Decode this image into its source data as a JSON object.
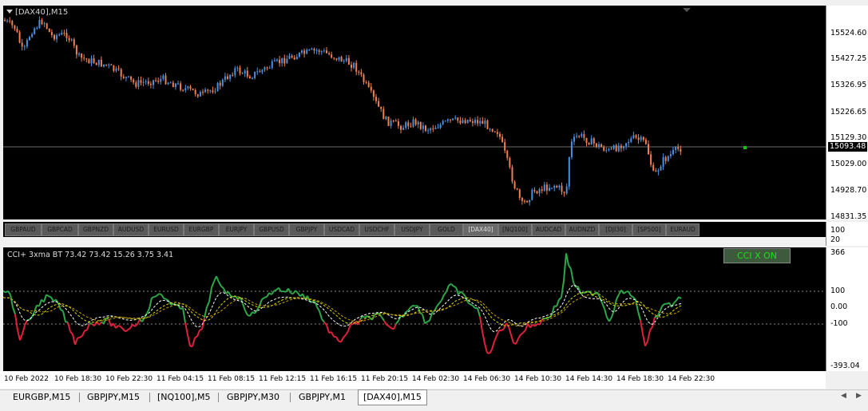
{
  "chart": {
    "title": "[DAX40],M15",
    "colors": {
      "up": "#4a90e2",
      "down": "#f08050",
      "cci": "#2ea64a",
      "cci_low": "#e0203a",
      "ma_fast": "#ffffff",
      "ma_slow": "#d8d800"
    }
  },
  "price_axis": {
    "labels": [
      "15524.60",
      "15427.25",
      "15326.95",
      "15226.65",
      "15129.30",
      "15029.00",
      "14928.70",
      "14831.35"
    ],
    "current": "15093.48"
  },
  "symbol_bar": {
    "buttons": [
      "GBPAUD",
      "GBPCAD",
      "GBPNZD",
      "AUDUSD",
      "EURUSD",
      "EURGBP",
      "EURJPY",
      "GBPUSD",
      "GBPJPY",
      "USDCAD",
      "USDCHF",
      "USDJPY",
      "GOLD",
      "[DAX40]",
      "[NQ100]",
      "AUDCAD",
      "AUDNZD",
      "[DJI30]",
      "[SP500]",
      "EURAUD"
    ],
    "active": "[DAX40]",
    "scale_labels": [
      "100",
      "20"
    ]
  },
  "indicator": {
    "label": "CCI+ 3xma BT 73.42 73.42 15.26 3.75 3.41",
    "button_label": "CCI X ON",
    "axis_labels": [
      "366",
      "100",
      "0.00",
      "-100",
      "-393.04"
    ]
  },
  "time_axis": {
    "labels": [
      "10 Feb 2022",
      "10 Feb 18:30",
      "10 Feb 22:30",
      "11 Feb 04:15",
      "11 Feb 08:15",
      "11 Feb 12:15",
      "11 Feb 16:15",
      "11 Feb 20:15",
      "14 Feb 02:30",
      "14 Feb 06:30",
      "14 Feb 10:30",
      "14 Feb 14:30",
      "14 Feb 18:30",
      "14 Feb 22:30"
    ]
  },
  "tabs": {
    "items": [
      "EURGBP,M15",
      "GBPJPY,M15",
      "[NQ100],M5",
      "GBPJPY,M30",
      "GBPJPY,M1",
      "[DAX40],M15"
    ],
    "active": "[DAX40],M15"
  }
}
